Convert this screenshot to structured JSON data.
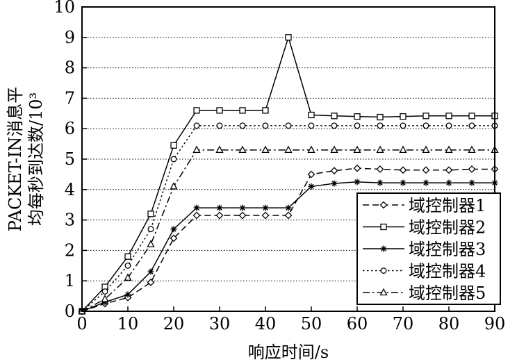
{
  "chart_data": {
    "type": "line",
    "xlabel": "响应时间/s",
    "ylabel_lines": [
      "PACKET-IN消息平",
      "均每秒到达数/10³"
    ],
    "xlim": [
      0,
      90
    ],
    "ylim": [
      0,
      10
    ],
    "x_ticks": [
      0,
      10,
      20,
      30,
      40,
      50,
      60,
      70,
      80,
      90
    ],
    "y_ticks": [
      0,
      1,
      2,
      3,
      4,
      5,
      6,
      7,
      8,
      9,
      10
    ],
    "grid": "horizontal dotted",
    "legend_position": "bottom-right",
    "x": [
      0,
      5,
      10,
      15,
      20,
      25,
      30,
      35,
      40,
      45,
      50,
      55,
      60,
      65,
      70,
      75,
      80,
      85,
      90
    ],
    "series": [
      {
        "name": "域控制器1",
        "marker": "diamond",
        "dash": "dashed",
        "values": [
          0,
          0.25,
          0.45,
          0.95,
          2.4,
          3.15,
          3.15,
          3.15,
          3.15,
          3.15,
          4.5,
          4.62,
          4.7,
          4.67,
          4.64,
          4.64,
          4.64,
          4.67,
          4.67
        ]
      },
      {
        "name": "域控制器2",
        "marker": "square",
        "dash": "solid",
        "values": [
          0,
          0.8,
          1.8,
          3.2,
          5.45,
          6.6,
          6.6,
          6.6,
          6.6,
          9.0,
          6.45,
          6.42,
          6.4,
          6.38,
          6.4,
          6.42,
          6.42,
          6.42,
          6.42
        ]
      },
      {
        "name": "域控制器3",
        "marker": "asterisk",
        "dash": "solid",
        "values": [
          0,
          0.3,
          0.55,
          1.3,
          2.7,
          3.4,
          3.4,
          3.4,
          3.4,
          3.4,
          4.1,
          4.2,
          4.25,
          4.22,
          4.22,
          4.22,
          4.22,
          4.22,
          4.22
        ]
      },
      {
        "name": "域控制器4",
        "marker": "circle",
        "dash": "dotted",
        "values": [
          0,
          0.65,
          1.5,
          2.7,
          5.0,
          6.1,
          6.1,
          6.1,
          6.1,
          6.1,
          6.1,
          6.1,
          6.1,
          6.1,
          6.1,
          6.1,
          6.1,
          6.1,
          6.1
        ]
      },
      {
        "name": "域控制器5",
        "marker": "triangle",
        "dash": "dashdot",
        "values": [
          0,
          0.4,
          1.1,
          2.2,
          4.1,
          5.3,
          5.3,
          5.3,
          5.3,
          5.3,
          5.3,
          5.3,
          5.3,
          5.3,
          5.3,
          5.3,
          5.3,
          5.3,
          5.3
        ]
      }
    ]
  }
}
